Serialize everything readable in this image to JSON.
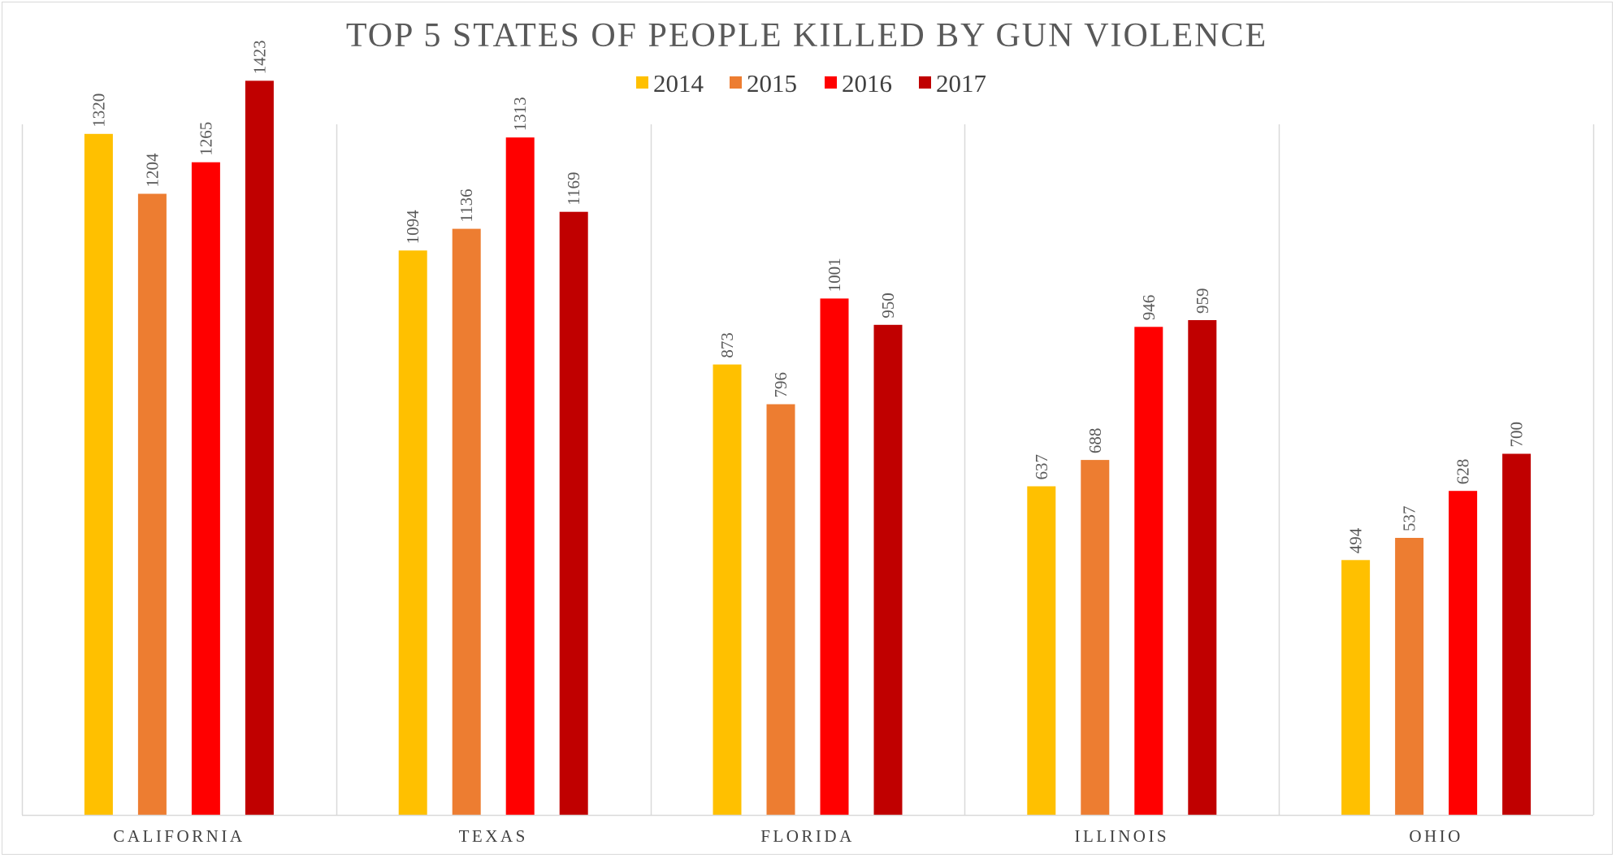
{
  "chart_data": {
    "type": "bar",
    "title": "TOP 5 STATES OF PEOPLE KILLED BY GUN VIOLENCE",
    "categories": [
      "CALIFORNIA",
      "TEXAS",
      "FLORIDA",
      "ILLINOIS",
      "OHIO"
    ],
    "series": [
      {
        "name": "2014",
        "color": "#FFC000",
        "values": [
          1320,
          1094,
          873,
          637,
          494
        ]
      },
      {
        "name": "2015",
        "color": "#ED7D31",
        "values": [
          1204,
          1136,
          796,
          688,
          537
        ]
      },
      {
        "name": "2016",
        "color": "#FF0000",
        "values": [
          1265,
          1313,
          1001,
          946,
          628
        ]
      },
      {
        "name": "2017",
        "color": "#C00000",
        "values": [
          1423,
          1169,
          950,
          959,
          700
        ]
      }
    ],
    "ylim": [
      0,
      1600
    ],
    "gridlines": "vertical category separators",
    "legend_position": "top",
    "data_labels": "rotated vertical above bars"
  }
}
